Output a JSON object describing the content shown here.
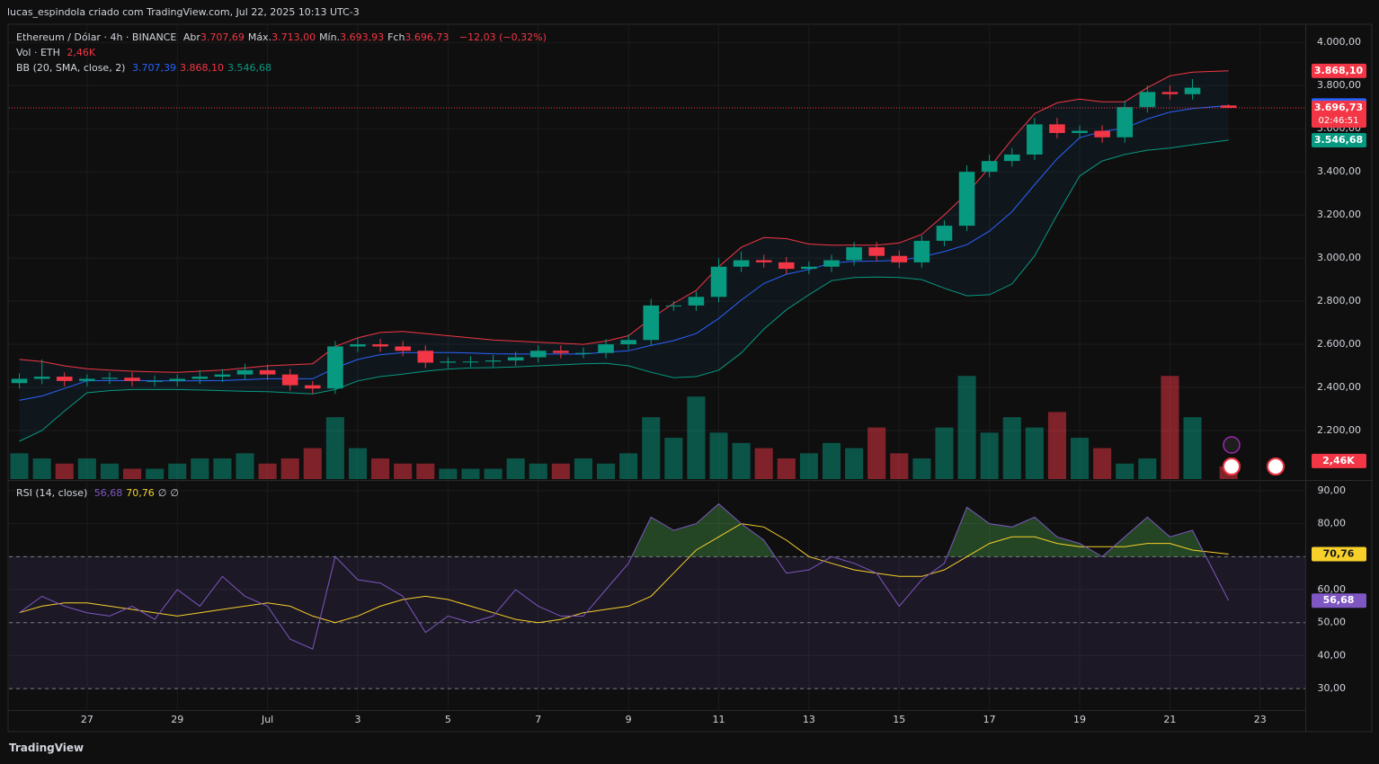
{
  "header": "lucas_espindola criado com TradingView.com, Jul 22, 2025 10:13 UTC-3",
  "footer": "TradingView",
  "chart_data": {
    "type": "candlestick",
    "symbol": "Ethereum / Dólar · 4h · BINANCE",
    "ohlc_labels": [
      {
        "name": "Abr",
        "value": "3.707,69"
      },
      {
        "name": "Máx.",
        "value": "3.713,00"
      },
      {
        "name": "Mín.",
        "value": "3.693,93"
      },
      {
        "name": "Fch",
        "value": "3.696,73"
      }
    ],
    "change": "−12,03 (−0,32%)",
    "volume_legend": {
      "name": "Vol · ETH",
      "value": "2,46K"
    },
    "bb_legend": {
      "name": "BB (20, SMA, close, 2)",
      "values": [
        "3.707,39",
        "3.868,10",
        "3.546,68"
      ]
    },
    "rsi_legend": {
      "name": "RSI (14, close)",
      "values": [
        "56,68",
        "70,76",
        "∅",
        "∅"
      ]
    },
    "up_color": "#089981",
    "down_color": "#f23645",
    "x": [
      -1.5,
      -1,
      -0.5,
      0,
      0.5,
      1,
      1.5,
      2,
      2.5,
      3,
      3.5,
      4,
      4.5,
      5,
      5.5,
      6,
      6.5,
      7,
      7.5,
      8,
      8.5,
      9,
      9.5,
      10,
      10.5,
      11,
      11.5,
      12,
      12.5,
      13,
      13.5,
      14,
      14.5,
      15,
      15.5,
      16,
      16.5,
      17,
      17.5,
      18,
      18.5,
      19,
      19.5,
      20,
      20.5,
      21,
      21.5,
      22,
      22.5,
      23,
      23.5,
      24,
      24.5,
      25.3
    ],
    "open": [
      2420,
      2440,
      2450,
      2430,
      2440,
      2445,
      2430,
      2430,
      2440,
      2450,
      2460,
      2480,
      2460,
      2410,
      2395,
      2590,
      2600,
      2590,
      2570,
      2515,
      2520,
      2520,
      2525,
      2540,
      2570,
      2560,
      2560,
      2600,
      2620,
      2780,
      2780,
      2820,
      2960,
      2990,
      2980,
      2950,
      2960,
      2990,
      3050,
      3010,
      2980,
      3080,
      3150,
      3400,
      3450,
      3480,
      3620,
      3580,
      3590,
      3560,
      3700,
      3770,
      3760,
      3707.69
    ],
    "high": [
      2465,
      2530,
      2470,
      2460,
      2470,
      2470,
      2455,
      2460,
      2480,
      2485,
      2510,
      2505,
      2485,
      2430,
      2615,
      2630,
      2625,
      2615,
      2595,
      2540,
      2545,
      2550,
      2565,
      2595,
      2595,
      2585,
      2625,
      2645,
      2810,
      2800,
      2845,
      3000,
      3030,
      3015,
      3005,
      2985,
      3015,
      3075,
      3075,
      3035,
      3105,
      3175,
      3430,
      3480,
      3510,
      3650,
      3650,
      3615,
      3615,
      3730,
      3800,
      3800,
      3830,
      3713
    ],
    "low": [
      2395,
      2415,
      2405,
      2405,
      2415,
      2405,
      2405,
      2405,
      2415,
      2425,
      2435,
      2435,
      2385,
      2370,
      2370,
      2565,
      2565,
      2545,
      2490,
      2490,
      2495,
      2495,
      2500,
      2515,
      2535,
      2535,
      2535,
      2575,
      2595,
      2755,
      2755,
      2795,
      2935,
      2955,
      2925,
      2925,
      2935,
      2965,
      2985,
      2955,
      2955,
      3055,
      3125,
      3375,
      3425,
      3455,
      3555,
      3555,
      3535,
      3535,
      3675,
      3735,
      3735,
      3693.93
    ],
    "close": [
      2440,
      2450,
      2430,
      2440,
      2445,
      2430,
      2430,
      2440,
      2450,
      2460,
      2480,
      2460,
      2410,
      2395,
      2590,
      2600,
      2590,
      2570,
      2515,
      2520,
      2520,
      2525,
      2540,
      2570,
      2560,
      2560,
      2600,
      2620,
      2780,
      2780,
      2820,
      2960,
      2990,
      2980,
      2950,
      2960,
      2990,
      3050,
      3010,
      2980,
      3080,
      3150,
      3400,
      3450,
      3480,
      3620,
      3580,
      3590,
      3560,
      3700,
      3770,
      3760,
      3790,
      3696.73
    ],
    "bb": [
      {
        "name": "basis",
        "color": "#2962ff",
        "values": [
          2340,
          2360,
          2395,
          2431,
          2432,
          2432,
          2431,
          2430,
          2431,
          2432,
          2436,
          2440,
          2440,
          2440,
          2490,
          2530,
          2552,
          2561,
          2562,
          2562,
          2560,
          2556,
          2555,
          2555,
          2555,
          2555,
          2563,
          2570,
          2595,
          2617,
          2650,
          2720,
          2805,
          2882,
          2925,
          2947,
          2977,
          2985,
          2986,
          2990,
          3005,
          3030,
          3062,
          3125,
          3215,
          3340,
          3460,
          3558,
          3587,
          3602,
          3645,
          3677,
          3693,
          3707.39
        ]
      },
      {
        "name": "upper",
        "color": "#f23645",
        "values": [
          2530,
          2520,
          2500,
          2487,
          2480,
          2475,
          2472,
          2470,
          2475,
          2480,
          2490,
          2500,
          2505,
          2510,
          2590,
          2630,
          2655,
          2660,
          2650,
          2640,
          2630,
          2620,
          2615,
          2610,
          2605,
          2600,
          2615,
          2640,
          2720,
          2790,
          2850,
          2960,
          3050,
          3095,
          3090,
          3065,
          3060,
          3060,
          3060,
          3070,
          3110,
          3200,
          3300,
          3420,
          3550,
          3670,
          3720,
          3737,
          3725,
          3725,
          3790,
          3845,
          3862,
          3868.1
        ]
      },
      {
        "name": "lower",
        "color": "#089981",
        "values": [
          2150,
          2200,
          2290,
          2375,
          2385,
          2390,
          2390,
          2390,
          2388,
          2385,
          2382,
          2380,
          2375,
          2370,
          2390,
          2430,
          2450,
          2462,
          2475,
          2485,
          2490,
          2492,
          2495,
          2500,
          2505,
          2510,
          2512,
          2500,
          2470,
          2445,
          2450,
          2480,
          2560,
          2670,
          2760,
          2830,
          2895,
          2910,
          2912,
          2910,
          2900,
          2860,
          2825,
          2830,
          2880,
          3010,
          3200,
          3380,
          3450,
          3480,
          3500,
          3510,
          3525,
          3546.68
        ]
      }
    ],
    "volume": [
      5,
      4,
      3,
      4,
      3,
      2,
      2,
      3,
      4,
      4,
      5,
      3,
      4,
      6,
      12,
      6,
      4,
      3,
      3,
      2,
      2,
      2,
      4,
      3,
      3,
      4,
      3,
      5,
      12,
      8,
      16,
      9,
      7,
      6,
      4,
      5,
      7,
      6,
      10,
      5,
      4,
      10,
      20,
      9,
      12,
      10,
      13,
      8,
      6,
      3,
      4,
      20,
      12,
      2.46
    ],
    "volume_lim": [
      0,
      88
    ],
    "rsi": {
      "color": "#7e57c2",
      "values": [
        53,
        58,
        55,
        53,
        52,
        55,
        51,
        60,
        55,
        64,
        58,
        55,
        45,
        42,
        70,
        63,
        62,
        58,
        47,
        52,
        50,
        52,
        60,
        55,
        52,
        52,
        60,
        68,
        82,
        78,
        80,
        86,
        80,
        75,
        65,
        66,
        70,
        68,
        65,
        55,
        63,
        68,
        85,
        80,
        79,
        82,
        76,
        74,
        70,
        76,
        82,
        76,
        78,
        56.68
      ]
    },
    "rsi_ma": {
      "color": "#f7d02a",
      "values": [
        53,
        55,
        56,
        56,
        55,
        54,
        53,
        52,
        53,
        54,
        55,
        56,
        55,
        52,
        50,
        52,
        55,
        57,
        58,
        57,
        55,
        53,
        51,
        50,
        51,
        53,
        54,
        55,
        58,
        65,
        72,
        76,
        80,
        79,
        75,
        70,
        68,
        66,
        65,
        64,
        64,
        66,
        70,
        74,
        76,
        76,
        74,
        73,
        73,
        73,
        74,
        74,
        72,
        70.76
      ]
    },
    "rsi_bands": [
      70,
      50,
      30
    ],
    "xlim": [
      -1.73,
      27.0
    ],
    "xticks": [
      {
        "value": 0,
        "label": "27"
      },
      {
        "value": 2,
        "label": "29"
      },
      {
        "value": 4,
        "label": "Jul"
      },
      {
        "value": 6,
        "label": "3"
      },
      {
        "value": 8,
        "label": "5"
      },
      {
        "value": 10,
        "label": "7"
      },
      {
        "value": 12,
        "label": "9"
      },
      {
        "value": 14,
        "label": "11"
      },
      {
        "value": 16,
        "label": "13"
      },
      {
        "value": 18,
        "label": "15"
      },
      {
        "value": 20,
        "label": "17"
      },
      {
        "value": 22,
        "label": "19"
      },
      {
        "value": 24,
        "label": "21"
      },
      {
        "value": 26,
        "label": "23"
      }
    ],
    "ylim": [
      1975,
      4080
    ],
    "yticks": [
      {
        "value": 4000,
        "label": "4.000,00"
      },
      {
        "value": 3800,
        "label": "3.800,00"
      },
      {
        "value": 3600,
        "label": "3.600,00"
      },
      {
        "value": 3400,
        "label": "3.400,00"
      },
      {
        "value": 3200,
        "label": "3.200,00"
      },
      {
        "value": 3000,
        "label": "3.000,00"
      },
      {
        "value": 2800,
        "label": "2.800,00"
      },
      {
        "value": 2600,
        "label": "2.600,00"
      },
      {
        "value": 2400,
        "label": "2.400,00"
      },
      {
        "value": 2200,
        "label": "2.200,00"
      }
    ],
    "rsi_lim": [
      23.5,
      92.7
    ],
    "rsi_ticks": [
      {
        "value": 90,
        "label": "90,00"
      },
      {
        "value": 80,
        "label": "80,00"
      },
      {
        "value": 70,
        "label": "70,00"
      },
      {
        "value": 60,
        "label": "60,00"
      },
      {
        "value": 50,
        "label": "50,00"
      },
      {
        "value": 40,
        "label": "40,00"
      },
      {
        "value": 30,
        "label": "30,00"
      }
    ],
    "price_badges": [
      {
        "value": 3868.1,
        "label": "3.868,10",
        "color": "#f23645"
      },
      {
        "value": 3707.39,
        "label": "3.707,39",
        "color": "#2962ff"
      },
      {
        "value": 3696.73,
        "label": "3.696,73",
        "sub": "02:46:51",
        "color": "#f23645"
      },
      {
        "value": 3546.68,
        "label": "3.546,68",
        "color": "#089981"
      }
    ],
    "volume_badge": {
      "value": 2.46,
      "label": "2,46K",
      "color": "#f23645"
    },
    "rsi_badges": [
      {
        "value": 70.76,
        "label": "70,76",
        "color": "#f7d02a"
      },
      {
        "value": 56.68,
        "label": "56,68",
        "color": "#7e57c2"
      }
    ],
    "last_price": 3696.73,
    "grid": true
  }
}
